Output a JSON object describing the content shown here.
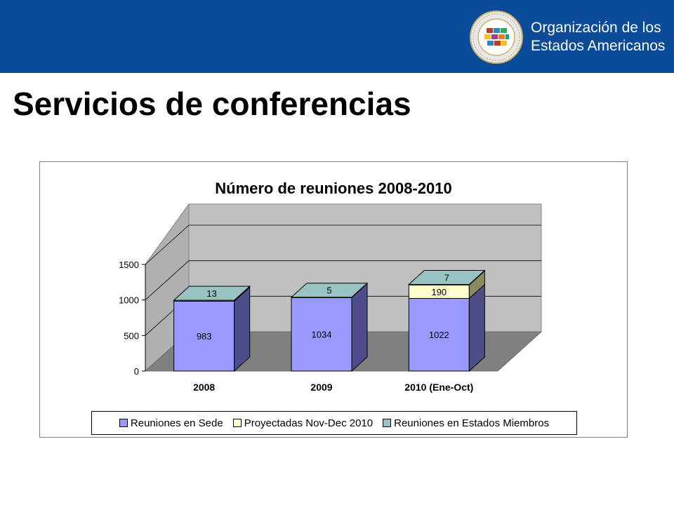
{
  "header": {
    "org_name_line1": "Organización de los",
    "org_name_line2": "Estados Americanos",
    "brand_color": "#0b4c9a"
  },
  "slide": {
    "title": "Servicios de conferencias"
  },
  "chart_data": {
    "type": "bar",
    "stacked": true,
    "three_d": true,
    "title": "Número de reuniones 2008-2010",
    "xlabel": "",
    "ylabel": "",
    "categories": [
      "2008",
      "2009",
      "2010 (Ene-Oct)"
    ],
    "ylim": [
      0,
      1500
    ],
    "yticks": [
      0,
      500,
      1000,
      1500
    ],
    "grid": true,
    "legend_position": "bottom",
    "series": [
      {
        "name": "Reuniones en Sede",
        "values": [
          983,
          1034,
          1022
        ],
        "color": "#9999ff",
        "dark": "#4d4d8a"
      },
      {
        "name": "Proyectadas Nov-Dec 2010",
        "values": [
          null,
          null,
          190
        ],
        "color": "#ffffcc",
        "dark": "#8a8a5c"
      },
      {
        "name": "Reuniones en Estados Miembros",
        "values": [
          13,
          5,
          7
        ],
        "color": "#99c2c2",
        "dark": "#5e7f7f"
      }
    ]
  }
}
